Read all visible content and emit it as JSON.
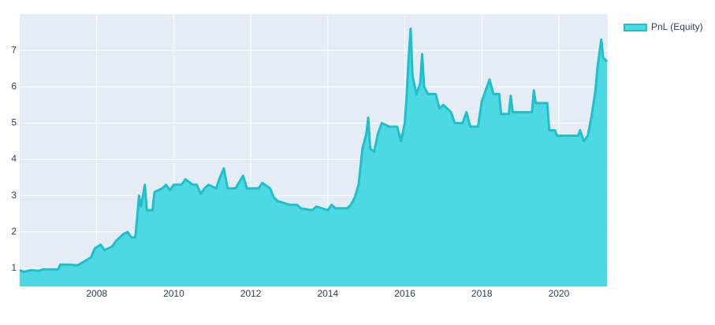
{
  "chart_data": {
    "type": "area",
    "x": [
      2006.0,
      2006.1,
      2006.3,
      2006.5,
      2006.6,
      2007.0,
      2007.05,
      2007.3,
      2007.5,
      2007.7,
      2007.85,
      2007.95,
      2008.1,
      2008.2,
      2008.4,
      2008.5,
      2008.7,
      2008.8,
      2008.9,
      2009.0,
      2009.05,
      2009.1,
      2009.15,
      2009.25,
      2009.3,
      2009.45,
      2009.5,
      2009.7,
      2009.8,
      2009.9,
      2010.0,
      2010.2,
      2010.3,
      2010.5,
      2010.6,
      2010.7,
      2010.8,
      2010.9,
      2011.1,
      2011.2,
      2011.3,
      2011.4,
      2011.6,
      2011.8,
      2011.9,
      2012.2,
      2012.3,
      2012.5,
      2012.6,
      2012.7,
      2013.0,
      2013.2,
      2013.3,
      2013.6,
      2013.7,
      2014.0,
      2014.1,
      2014.2,
      2014.5,
      2014.6,
      2014.7,
      2014.8,
      2014.9,
      2015.0,
      2015.05,
      2015.1,
      2015.2,
      2015.3,
      2015.4,
      2015.6,
      2015.8,
      2015.9,
      2016.0,
      2016.05,
      2016.1,
      2016.15,
      2016.2,
      2016.3,
      2016.4,
      2016.45,
      2016.5,
      2016.6,
      2016.8,
      2016.9,
      2017.0,
      2017.2,
      2017.3,
      2017.5,
      2017.6,
      2017.7,
      2017.9,
      2018.0,
      2018.1,
      2018.2,
      2018.3,
      2018.45,
      2018.5,
      2018.7,
      2018.75,
      2018.8,
      2019.3,
      2019.35,
      2019.4,
      2019.7,
      2019.75,
      2019.9,
      2019.95,
      2020.5,
      2020.55,
      2020.65,
      2020.75,
      2020.85,
      2020.95,
      2021.0,
      2021.1,
      2021.15,
      2021.25
    ],
    "series": [
      {
        "name": "PnL (Equity)",
        "color": "#1fbfcc",
        "fill": "#4dd9e3",
        "values": [
          0.95,
          0.9,
          0.95,
          0.93,
          0.97,
          0.97,
          1.1,
          1.1,
          1.08,
          1.2,
          1.3,
          1.55,
          1.65,
          1.5,
          1.6,
          1.75,
          1.95,
          2.0,
          1.85,
          1.85,
          2.4,
          3.0,
          2.7,
          3.3,
          2.6,
          2.6,
          3.1,
          3.2,
          3.3,
          3.15,
          3.3,
          3.3,
          3.45,
          3.3,
          3.3,
          3.05,
          3.2,
          3.3,
          3.2,
          3.5,
          3.75,
          3.2,
          3.2,
          3.55,
          3.2,
          3.2,
          3.35,
          3.2,
          2.95,
          2.85,
          2.75,
          2.75,
          2.65,
          2.6,
          2.7,
          2.6,
          2.75,
          2.65,
          2.65,
          2.75,
          2.95,
          3.3,
          4.3,
          4.7,
          5.15,
          4.3,
          4.2,
          4.7,
          5.0,
          4.9,
          4.9,
          4.5,
          5.0,
          5.8,
          6.8,
          7.6,
          6.3,
          5.8,
          6.1,
          6.9,
          6.0,
          5.8,
          5.8,
          5.4,
          5.5,
          5.3,
          5.0,
          5.0,
          5.3,
          4.9,
          4.9,
          5.6,
          5.9,
          6.2,
          5.8,
          5.8,
          5.25,
          5.25,
          5.75,
          5.3,
          5.3,
          5.9,
          5.55,
          5.55,
          4.8,
          4.8,
          4.65,
          4.65,
          4.8,
          4.5,
          4.65,
          5.2,
          5.9,
          6.5,
          7.3,
          6.8,
          6.7
        ]
      }
    ],
    "xlim": [
      2006.0,
      2021.27
    ],
    "ylim": [
      0.5,
      8.0
    ],
    "xticks": [
      2008,
      2010,
      2012,
      2014,
      2016,
      2018,
      2020
    ],
    "yticks": [
      1,
      2,
      3,
      4,
      5,
      6,
      7
    ],
    "grid": true,
    "legend": "top-right"
  }
}
